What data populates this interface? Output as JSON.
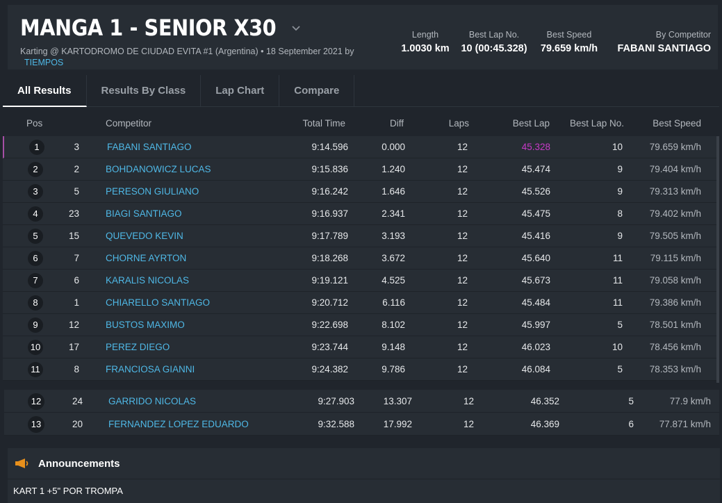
{
  "header": {
    "title": "MANGA 1 - SENIOR X30",
    "subtitle": "Karting @ KARTODROMO DE CIUDAD EVITA #1 (Argentina) • 18 September 2021 by",
    "subtitle_link": "TIEMPOS",
    "stats": {
      "length_label": "Length",
      "length_value": "1.0030 km",
      "bestlap_label": "Best Lap No.",
      "bestlap_value": "10 (00:45.328)",
      "speed_label": "Best Speed",
      "speed_value": "79.659 km/h",
      "competitor_label": "By Competitor",
      "competitor_value": "FABANI SANTIAGO"
    }
  },
  "tabs": [
    "All Results",
    "Results By Class",
    "Lap Chart",
    "Compare"
  ],
  "table": {
    "headers": {
      "pos": "Pos",
      "competitor": "Competitor",
      "total": "Total Time",
      "diff": "Diff",
      "laps": "Laps",
      "best_lap": "Best Lap",
      "best_lap_no": "Best Lap No.",
      "best_speed": "Best Speed"
    },
    "rows": [
      {
        "pos": "1",
        "num": "3",
        "name": "FABANI SANTIAGO",
        "total": "9:14.596",
        "diff": "0.000",
        "laps": "12",
        "best": "45.328",
        "bestno": "10",
        "speed": "79.659 km/h"
      },
      {
        "pos": "2",
        "num": "2",
        "name": "BOHDANOWICZ LUCAS",
        "total": "9:15.836",
        "diff": "1.240",
        "laps": "12",
        "best": "45.474",
        "bestno": "9",
        "speed": "79.404 km/h"
      },
      {
        "pos": "3",
        "num": "5",
        "name": "PERESON GIULIANO",
        "total": "9:16.242",
        "diff": "1.646",
        "laps": "12",
        "best": "45.526",
        "bestno": "9",
        "speed": "79.313 km/h"
      },
      {
        "pos": "4",
        "num": "23",
        "name": "BIAGI SANTIAGO",
        "total": "9:16.937",
        "diff": "2.341",
        "laps": "12",
        "best": "45.475",
        "bestno": "8",
        "speed": "79.402 km/h"
      },
      {
        "pos": "5",
        "num": "15",
        "name": "QUEVEDO KEVIN",
        "total": "9:17.789",
        "diff": "3.193",
        "laps": "12",
        "best": "45.416",
        "bestno": "9",
        "speed": "79.505 km/h"
      },
      {
        "pos": "6",
        "num": "7",
        "name": "CHORNE AYRTON",
        "total": "9:18.268",
        "diff": "3.672",
        "laps": "12",
        "best": "45.640",
        "bestno": "11",
        "speed": "79.115 km/h"
      },
      {
        "pos": "7",
        "num": "6",
        "name": "KARALIS NICOLAS",
        "total": "9:19.121",
        "diff": "4.525",
        "laps": "12",
        "best": "45.673",
        "bestno": "11",
        "speed": "79.058 km/h"
      },
      {
        "pos": "8",
        "num": "1",
        "name": "CHIARELLO SANTIAGO",
        "total": "9:20.712",
        "diff": "6.116",
        "laps": "12",
        "best": "45.484",
        "bestno": "11",
        "speed": "79.386 km/h"
      },
      {
        "pos": "9",
        "num": "12",
        "name": "BUSTOS MAXIMO",
        "total": "9:22.698",
        "diff": "8.102",
        "laps": "12",
        "best": "45.997",
        "bestno": "5",
        "speed": "78.501 km/h"
      },
      {
        "pos": "10",
        "num": "17",
        "name": "PEREZ DIEGO",
        "total": "9:23.744",
        "diff": "9.148",
        "laps": "12",
        "best": "46.023",
        "bestno": "10",
        "speed": "78.456 km/h"
      },
      {
        "pos": "11",
        "num": "8",
        "name": "FRANCIOSA GIANNI",
        "total": "9:24.382",
        "diff": "9.786",
        "laps": "12",
        "best": "46.084",
        "bestno": "5",
        "speed": "78.353 km/h"
      }
    ],
    "extra_rows": [
      {
        "pos": "12",
        "num": "24",
        "name": "GARRIDO NICOLAS",
        "total": "9:27.903",
        "diff": "13.307",
        "laps": "12",
        "best": "46.352",
        "bestno": "5",
        "speed": "77.9 km/h"
      },
      {
        "pos": "13",
        "num": "20",
        "name": "FERNANDEZ LOPEZ EDUARDO",
        "total": "9:32.588",
        "diff": "17.992",
        "laps": "12",
        "best": "46.369",
        "bestno": "6",
        "speed": "77.871 km/h"
      }
    ]
  },
  "announcements": {
    "title": "Announcements",
    "text": "KART 1 +5\" POR TROMPA"
  },
  "colors": {
    "accent_link": "#4fb8e6",
    "best_lap_highlight": "#c73ac7",
    "megaphone": "#e8901c"
  }
}
